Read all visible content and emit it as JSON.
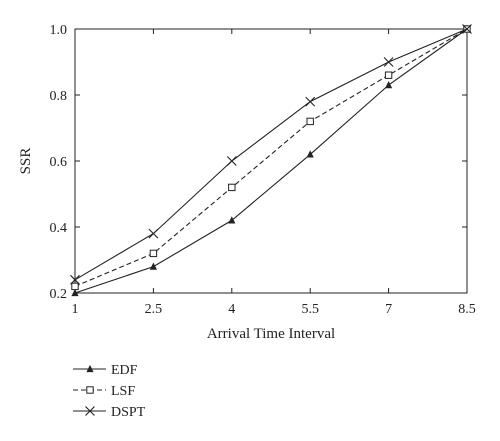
{
  "chart_data": {
    "type": "line",
    "title": "",
    "xlabel": "Arrival Time Interval",
    "ylabel": "SSR",
    "x": [
      1,
      2.5,
      4,
      5.5,
      7,
      8.5
    ],
    "xlim": [
      1,
      8.5
    ],
    "ylim": [
      0.2,
      1.0
    ],
    "x_ticks": [
      "1",
      "2.5",
      "4",
      "5.5",
      "7",
      "8.5"
    ],
    "y_ticks": [
      "0.2",
      "0.4",
      "0.6",
      "0.8",
      "1.0"
    ],
    "grid": false,
    "legend_position": "bottom-left, below plot",
    "series": [
      {
        "name": "EDF",
        "values": [
          0.2,
          0.28,
          0.42,
          0.62,
          0.83,
          1.0
        ],
        "marker": "filled-triangle",
        "line_style": "solid",
        "color": "#222222"
      },
      {
        "name": "LSF",
        "values": [
          0.22,
          0.32,
          0.52,
          0.72,
          0.86,
          1.0
        ],
        "marker": "open-square",
        "line_style": "dashed",
        "color": "#222222"
      },
      {
        "name": "DSPT",
        "values": [
          0.24,
          0.38,
          0.6,
          0.78,
          0.9,
          1.0
        ],
        "marker": "x-cross",
        "line_style": "solid",
        "color": "#222222"
      }
    ]
  }
}
